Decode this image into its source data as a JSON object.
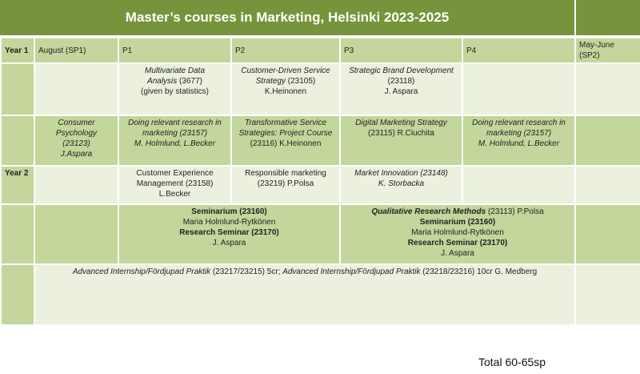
{
  "title": "Master’s courses in Marketing, Helsinki 2023-2025",
  "header": {
    "year1": "Year 1",
    "cols": [
      "August (SP1)",
      "P1",
      "P2",
      "P3",
      "P4",
      "May-June (SP2)"
    ]
  },
  "row1": {
    "p1": {
      "name_a": "Multivariate Data",
      "name_b": "Analysis",
      "code": " (3677)",
      "note": "(given by statistics)"
    },
    "p2": {
      "name_a": "Customer-Driven Service",
      "name_b": "Strategy",
      "code": " (23105)",
      "teacher": "K.Heinonen"
    },
    "p3": {
      "name": "Strategic Brand Development",
      "code": "(23118)",
      "teacher": "J. Aspara"
    }
  },
  "row2": {
    "aug": {
      "l1": "Consumer",
      "l2": "Psychology",
      "l3": "(23123)",
      "l4": "J.Aspara"
    },
    "p1": {
      "l1": "Doing relevant research in",
      "l2": "marketing (23157)",
      "l3": "M. Holmlund, L.Becker"
    },
    "p2": {
      "l1": "Transformative Service",
      "l2": "Strategies: Project Course",
      "l3": "(23116)  K.Heinonen"
    },
    "p3": {
      "l1": "Digital Marketing Strategy",
      "l2": "(23115) R.Ciuchita"
    },
    "p4": {
      "l1": "Doing relevant research in",
      "l2": "marketing (23157)",
      "l3": "M. Holmlund, L.Becker"
    }
  },
  "row3": {
    "year2": "Year 2",
    "p1": {
      "l1": "Customer Experience",
      "l2": "Management (23158)",
      "l3": "L.Becker"
    },
    "p2": {
      "l1": "Responsible marketing",
      "l2": "(23219) P.Polsa"
    },
    "p3": {
      "l1": "Market Innovation (23148)",
      "l2": "K. Storbacka"
    }
  },
  "row4": {
    "left": {
      "l1": "Seminarium (23160)",
      "l2": "Maria Holmlund-Rytkönen",
      "l3": "Research Seminar (23170)",
      "l4": "J. Aspara"
    },
    "right": {
      "l0a": "Qualitative Research Methods",
      "l0b": " (23113) P.Polsa",
      "l1": "Seminarium (23160)",
      "l2": "Maria Holmlund-Rytkönen",
      "l3": "Research Seminar (23170)",
      "l4": "J. Aspara"
    }
  },
  "row5": {
    "a": "Advanced Internship/Fördjupad Praktik",
    "b": " (23217/23215) 5cr; ",
    "c": "Advanced Internship/Fördjupad Praktik",
    "d": " (23218/23216) 10cr  G. Medberg"
  },
  "total": "Total 60-65sp"
}
